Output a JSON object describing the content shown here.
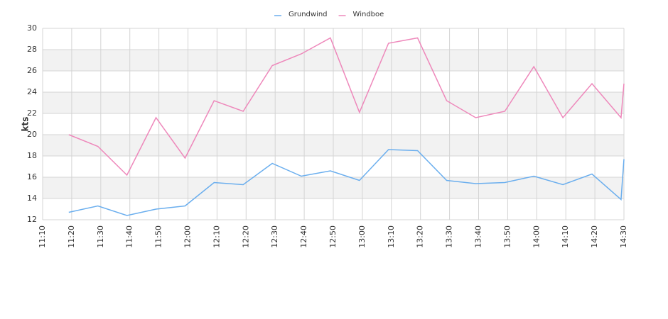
{
  "chart_data": {
    "type": "line",
    "ylabel": "kts",
    "x": [
      "11:19",
      "11:29",
      "11:39",
      "11:49",
      "11:59",
      "12:09",
      "12:19",
      "12:29",
      "12:39",
      "12:49",
      "12:59",
      "13:09",
      "13:19",
      "13:29",
      "13:39",
      "13:49",
      "13:59",
      "14:09",
      "14:19",
      "14:29",
      "14:30"
    ],
    "series": [
      {
        "name": "Grundwind",
        "color": "#6aaeee",
        "values": [
          12.7,
          13.3,
          12.4,
          13.0,
          13.3,
          15.5,
          15.3,
          17.3,
          16.1,
          16.6,
          15.7,
          18.6,
          18.5,
          15.7,
          15.4,
          15.5,
          16.1,
          15.3,
          16.3,
          13.9,
          17.7
        ]
      },
      {
        "name": "Windboe",
        "color": "#ee88bb",
        "values": [
          20.0,
          18.9,
          16.2,
          21.6,
          17.8,
          23.2,
          22.2,
          26.5,
          27.6,
          29.1,
          22.1,
          28.6,
          29.1,
          23.2,
          21.6,
          22.2,
          26.4,
          21.6,
          24.8,
          21.6,
          24.8
        ]
      }
    ],
    "xlim": [
      "11:10",
      "14:30"
    ],
    "xticks": [
      "11:10",
      "11:20",
      "11:30",
      "11:40",
      "11:50",
      "12:00",
      "12:10",
      "12:20",
      "12:30",
      "12:40",
      "12:50",
      "13:00",
      "13:10",
      "13:20",
      "13:30",
      "13:40",
      "13:50",
      "14:00",
      "14:10",
      "14:20",
      "14:30"
    ],
    "ylim": [
      12,
      30
    ],
    "yticks": [
      12,
      14,
      16,
      18,
      20,
      22,
      24,
      26,
      28,
      30
    ],
    "grid": true
  }
}
